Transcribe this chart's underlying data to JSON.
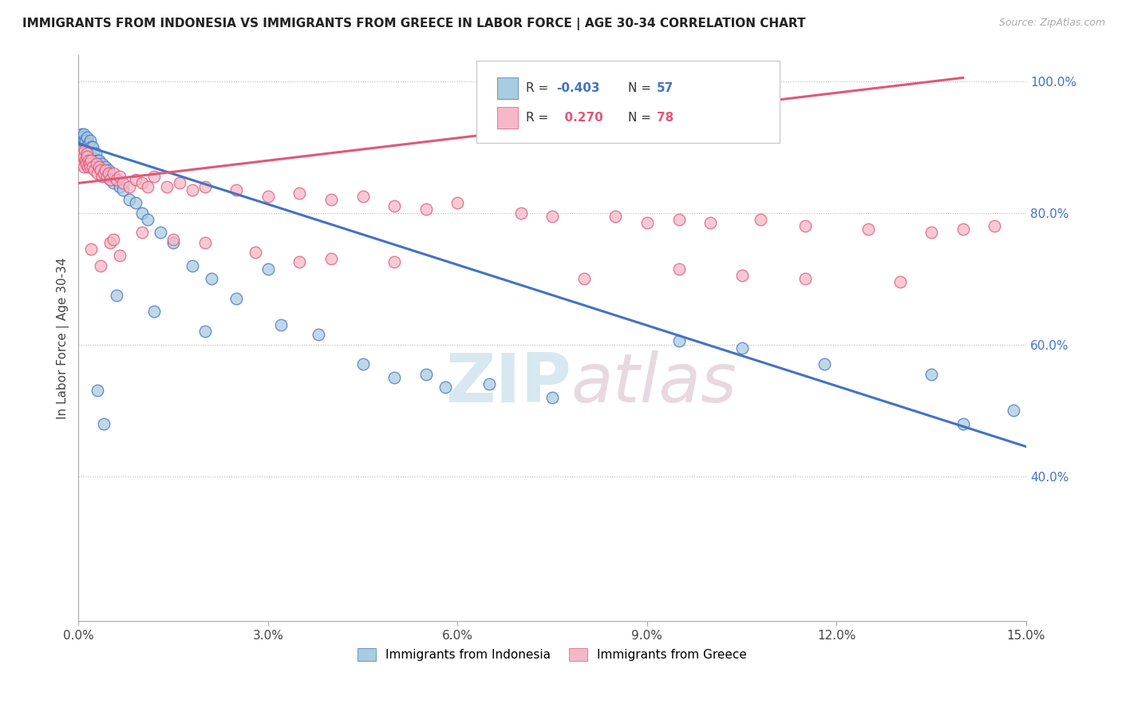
{
  "title": "IMMIGRANTS FROM INDONESIA VS IMMIGRANTS FROM GREECE IN LABOR FORCE | AGE 30-34 CORRELATION CHART",
  "source": "Source: ZipAtlas.com",
  "ylabel": "In Labor Force | Age 30-34",
  "xlim": [
    0.0,
    15.0
  ],
  "ylim": [
    18.0,
    104.0
  ],
  "x_ticks": [
    0.0,
    3.0,
    6.0,
    9.0,
    12.0,
    15.0
  ],
  "x_tick_labels": [
    "0.0%",
    "3.0%",
    "6.0%",
    "9.0%",
    "12.0%",
    "15.0%"
  ],
  "y_ticks": [
    40.0,
    60.0,
    80.0,
    100.0
  ],
  "y_tick_labels": [
    "40.0%",
    "60.0%",
    "80.0%",
    "100.0%"
  ],
  "indonesia_color": "#a8cce0",
  "greece_color": "#f4b8c8",
  "indonesia_line_color": "#4472c4",
  "greece_line_color": "#e05878",
  "indonesia_R": -0.403,
  "indonesia_N": 57,
  "greece_R": 0.27,
  "greece_N": 78,
  "watermark_zip": "ZIP",
  "watermark_atlas": "atlas",
  "background_color": "#ffffff",
  "indo_line_x0": 0.0,
  "indo_line_y0": 90.5,
  "indo_line_x1": 15.0,
  "indo_line_y1": 44.5,
  "greece_line_x0": 0.0,
  "greece_line_y0": 84.5,
  "greece_line_x1": 14.0,
  "greece_line_y1": 100.5,
  "indonesia_x": [
    0.05,
    0.06,
    0.07,
    0.08,
    0.09,
    0.1,
    0.11,
    0.12,
    0.13,
    0.14,
    0.15,
    0.16,
    0.17,
    0.18,
    0.19,
    0.2,
    0.21,
    0.22,
    0.23,
    0.24,
    0.25,
    0.27,
    0.28,
    0.3,
    0.32,
    0.35,
    0.37,
    0.4,
    0.42,
    0.45,
    0.47,
    0.5,
    0.55,
    0.6,
    0.65,
    0.7,
    0.8,
    0.9,
    1.0,
    1.1,
    1.3,
    1.5,
    1.8,
    2.1,
    2.5,
    3.0,
    3.2,
    3.8,
    4.5,
    5.0,
    6.5,
    7.5,
    9.5,
    10.5,
    11.8,
    13.5,
    14.8
  ],
  "indonesia_y": [
    92.0,
    91.5,
    91.0,
    91.0,
    92.0,
    90.5,
    91.0,
    90.0,
    91.5,
    90.0,
    89.5,
    90.5,
    89.0,
    89.5,
    91.0,
    90.0,
    88.5,
    90.0,
    89.0,
    88.0,
    87.5,
    89.0,
    88.0,
    87.0,
    88.0,
    86.5,
    87.5,
    86.0,
    87.0,
    85.5,
    86.5,
    85.0,
    84.5,
    85.0,
    84.0,
    83.5,
    82.0,
    81.5,
    80.0,
    79.0,
    77.0,
    75.5,
    72.0,
    70.0,
    67.0,
    71.5,
    63.0,
    61.5,
    57.0,
    55.0,
    54.0,
    52.0,
    60.5,
    59.5,
    57.0,
    55.5,
    50.0
  ],
  "indonesia_outliers_x": [
    0.3,
    0.4,
    0.6,
    1.2,
    2.0,
    5.5,
    5.8,
    14.0
  ],
  "indonesia_outliers_y": [
    53.0,
    48.0,
    67.5,
    65.0,
    62.0,
    55.5,
    53.5,
    48.0
  ],
  "greece_x": [
    0.04,
    0.05,
    0.06,
    0.07,
    0.08,
    0.09,
    0.1,
    0.11,
    0.12,
    0.13,
    0.14,
    0.15,
    0.16,
    0.17,
    0.18,
    0.2,
    0.22,
    0.25,
    0.28,
    0.3,
    0.32,
    0.35,
    0.38,
    0.4,
    0.43,
    0.45,
    0.48,
    0.5,
    0.55,
    0.6,
    0.65,
    0.7,
    0.8,
    0.9,
    1.0,
    1.1,
    1.2,
    1.4,
    1.6,
    1.8,
    2.0,
    2.5,
    3.0,
    3.5,
    4.0,
    4.5,
    5.0,
    5.5,
    6.0,
    7.0,
    7.5,
    8.5,
    9.0,
    9.5,
    10.0,
    10.8,
    11.5,
    12.5,
    13.5,
    14.0,
    14.5
  ],
  "greece_y": [
    88.0,
    87.5,
    88.5,
    89.0,
    87.0,
    88.5,
    89.5,
    88.0,
    87.5,
    89.0,
    88.5,
    87.0,
    88.0,
    87.5,
    87.0,
    88.0,
    87.0,
    86.5,
    87.5,
    86.0,
    87.0,
    86.5,
    85.5,
    86.0,
    86.5,
    85.5,
    86.0,
    85.0,
    86.0,
    85.0,
    85.5,
    84.5,
    84.0,
    85.0,
    84.5,
    84.0,
    85.5,
    84.0,
    84.5,
    83.5,
    84.0,
    83.5,
    82.5,
    83.0,
    82.0,
    82.5,
    81.0,
    80.5,
    81.5,
    80.0,
    79.5,
    79.5,
    78.5,
    79.0,
    78.5,
    79.0,
    78.0,
    77.5,
    77.0,
    77.5,
    78.0
  ],
  "greece_outliers_x": [
    0.2,
    0.35,
    0.5,
    0.55,
    0.65,
    1.0,
    1.5,
    2.0,
    2.8,
    3.5,
    4.0,
    5.0,
    8.0,
    9.5,
    10.5,
    11.5,
    13.0
  ],
  "greece_outliers_y": [
    74.5,
    72.0,
    75.5,
    76.0,
    73.5,
    77.0,
    76.0,
    75.5,
    74.0,
    72.5,
    73.0,
    72.5,
    70.0,
    71.5,
    70.5,
    70.0,
    69.5
  ]
}
